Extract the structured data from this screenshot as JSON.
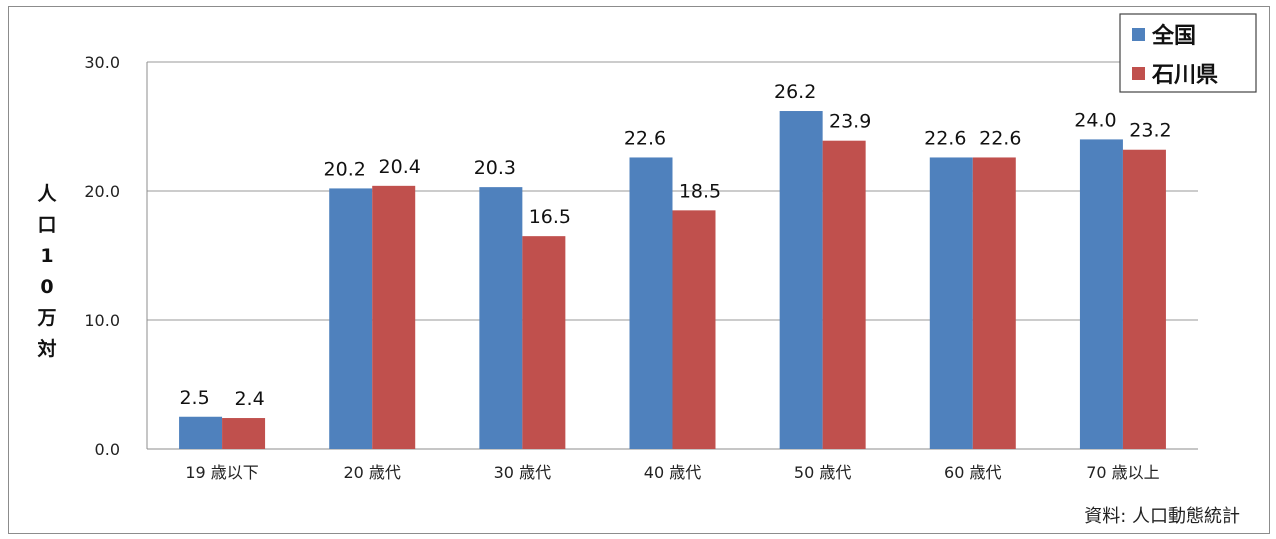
{
  "chart_data": {
    "type": "bar",
    "categories": [
      "19 歳以下",
      "20 歳代",
      "30 歳代",
      "40 歳代",
      "50 歳代",
      "60 歳代",
      "70 歳以上"
    ],
    "series": [
      {
        "name": "全国",
        "color": "#4f81bd",
        "values": [
          2.5,
          20.2,
          20.3,
          22.6,
          26.2,
          22.6,
          24.0
        ]
      },
      {
        "name": "石川県",
        "color": "#c0504d",
        "values": [
          2.4,
          20.4,
          16.5,
          18.5,
          23.9,
          22.6,
          23.2
        ]
      }
    ],
    "ylabel": "人口10万対",
    "ylabel_chars": [
      "人",
      "口",
      "1",
      "0",
      "万",
      "対"
    ],
    "ylim": [
      0,
      30
    ],
    "yticks": [
      0,
      10,
      20,
      30
    ],
    "ytick_labels": [
      "0.0",
      "10.0",
      "20.0",
      "30.0"
    ],
    "grid": true,
    "legend_position": "top-right",
    "source_note": "資料: 人口動態統計"
  }
}
